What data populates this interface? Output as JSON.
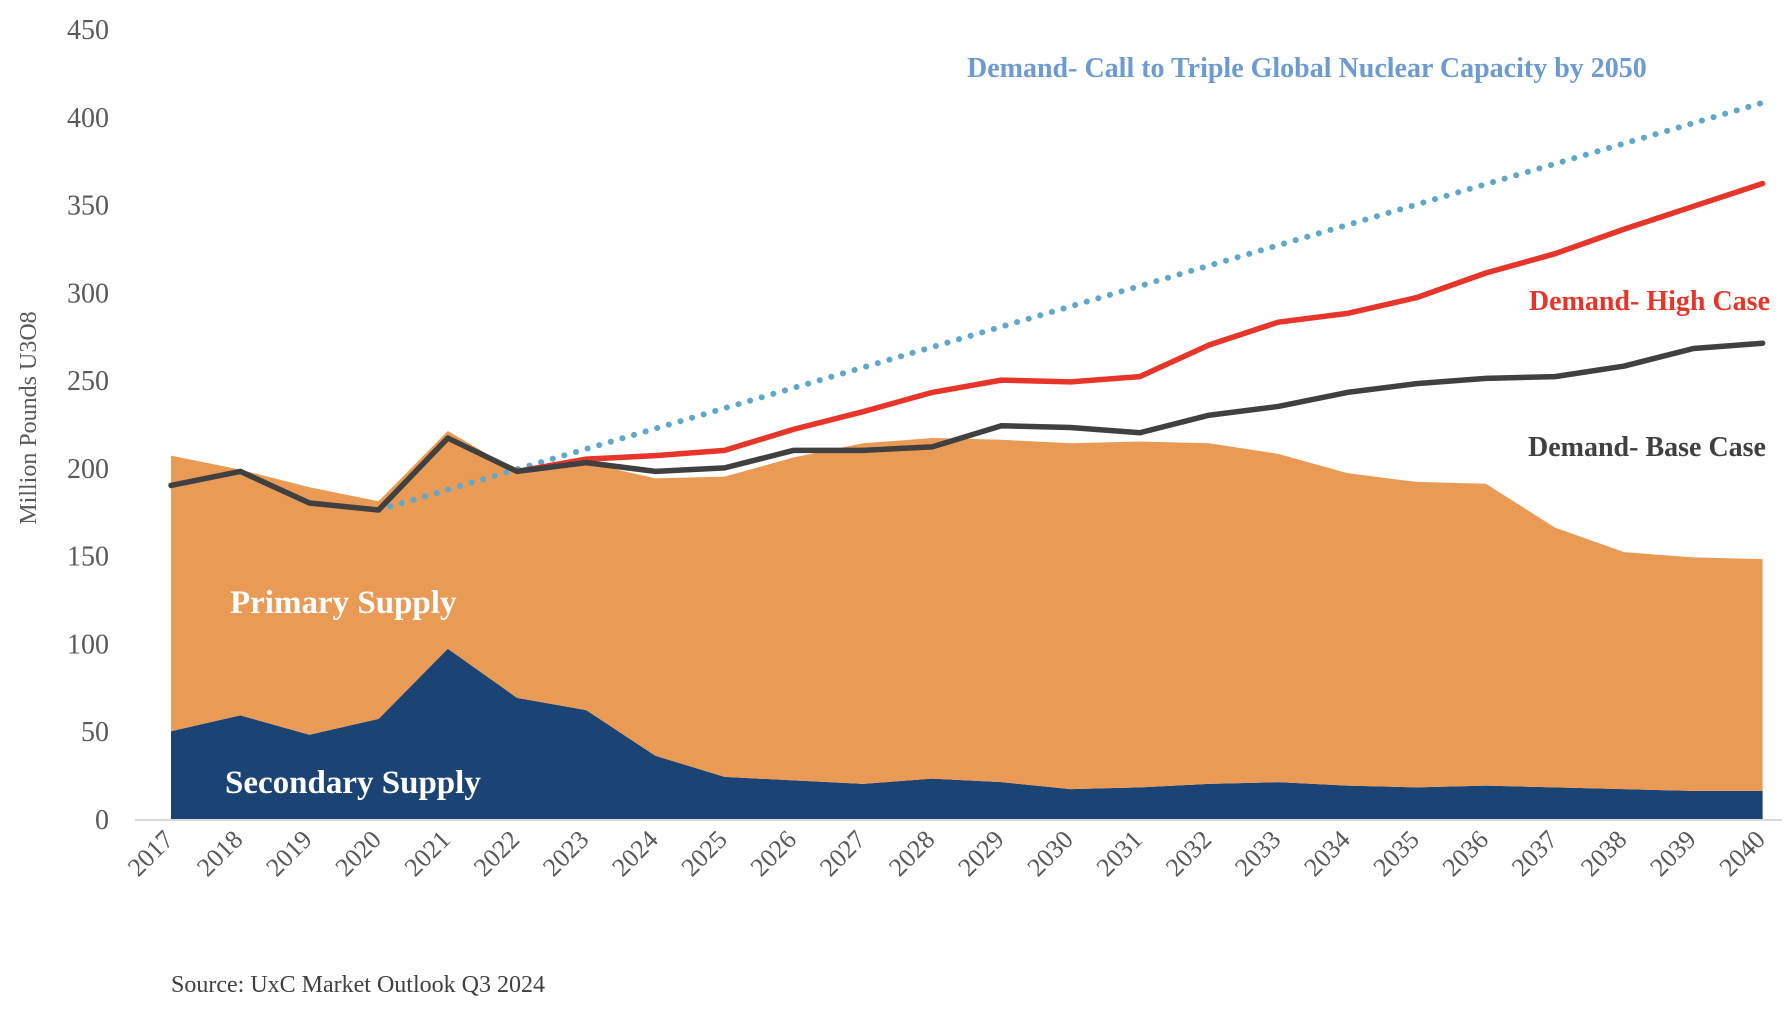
{
  "chart_data": {
    "type": "area",
    "title": "",
    "xlabel": "",
    "ylabel": "Million Pounds U3O8",
    "ylim": [
      0,
      450
    ],
    "yticks": [
      0,
      50,
      100,
      150,
      200,
      250,
      300,
      350,
      400,
      450
    ],
    "grid": false,
    "legend": "inline labels",
    "categories": [
      "2017",
      "2018",
      "2019",
      "2020",
      "2021",
      "2022",
      "2023",
      "2024",
      "2025",
      "2026",
      "2027",
      "2028",
      "2029",
      "2030",
      "2031",
      "2032",
      "2033",
      "2034",
      "2035",
      "2036",
      "2037",
      "2038",
      "2039",
      "2040"
    ],
    "stacked_areas": [
      {
        "name": "Secondary Supply",
        "color": "#1b4374",
        "values": [
          50,
          59,
          48,
          57,
          97,
          69,
          62,
          36,
          24,
          22,
          20,
          23,
          21,
          17,
          18,
          20,
          21,
          19,
          18,
          19,
          18,
          17,
          16,
          16
        ]
      },
      {
        "name": "Primary Supply",
        "color": "#e99b56",
        "values": [
          157,
          140,
          141,
          124,
          124,
          129,
          141,
          158,
          171,
          184,
          194,
          194,
          195,
          197,
          197,
          194,
          187,
          178,
          174,
          172,
          148,
          135,
          133,
          132
        ]
      }
    ],
    "lines": [
      {
        "name": "Demand- Base Case",
        "color": "#404040",
        "style": "solid",
        "start": "2017",
        "values": [
          190,
          198,
          180,
          176,
          217,
          198,
          203,
          198,
          200,
          210,
          210,
          212,
          224,
          223,
          220,
          230,
          235,
          243,
          248,
          251,
          252,
          258,
          268,
          271
        ]
      },
      {
        "name": "Demand- High Case",
        "color": "#e8352a",
        "style": "solid",
        "start": "2022",
        "values": [
          198,
          205,
          207,
          210,
          222,
          232,
          243,
          250,
          249,
          252,
          270,
          283,
          288,
          297,
          311,
          322,
          336,
          349,
          362
        ]
      },
      {
        "name": "Demand- Call to Triple Global Nuclear Capacity by 2050",
        "color": "#5fa8c9",
        "style": "dotted",
        "start": "2020",
        "values": [
          176,
          187.6,
          199.2,
          210.8,
          222.4,
          234,
          245.6,
          257.2,
          268.8,
          280.4,
          292,
          303.6,
          315.2,
          326.8,
          338.4,
          350,
          361.6,
          373.2,
          384.8,
          396.4,
          408
        ]
      }
    ],
    "annotations": [
      {
        "text": "Demand- Call to Triple Global Nuclear Capacity by 2050",
        "color": "#6b9bd2"
      },
      {
        "text": "Demand- High Case",
        "color": "#e8352a"
      },
      {
        "text": "Demand- Base Case",
        "color": "#404040"
      },
      {
        "text": "Primary Supply",
        "color": "#ffffff"
      },
      {
        "text": "Secondary Supply",
        "color": "#ffffff"
      }
    ]
  },
  "source": "Source: UxC Market Outlook Q3 2024"
}
